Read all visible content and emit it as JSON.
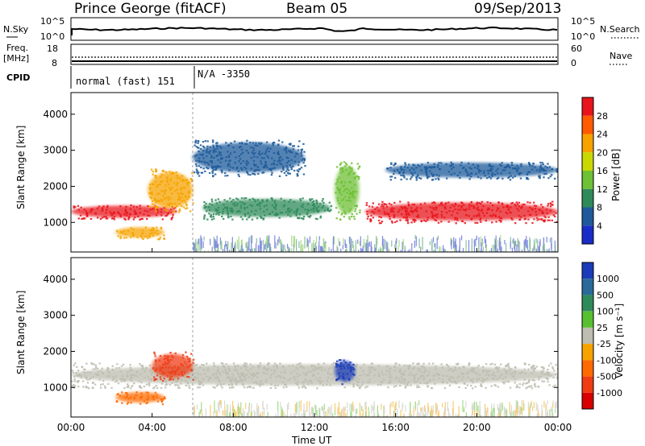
{
  "header": {
    "station": "Prince George (fitACF)",
    "beam": "Beam 05",
    "date": "09/Sep/2013"
  },
  "noise_panel": {
    "left_label": "N.Sky",
    "right_label": "N.Search",
    "left_ticks": [
      "10^5",
      "10^0"
    ],
    "right_ticks": [
      "10^5",
      "10^0"
    ]
  },
  "freq_panel": {
    "left_label_line1": "Freq.",
    "left_label_line2": "[MHz]",
    "right_label": "Nave",
    "left_ticks": [
      "18",
      "8"
    ],
    "right_ticks": [
      "60",
      "0"
    ]
  },
  "cpid": {
    "label": "CPID",
    "segment1": "normal (fast) 151",
    "segment2": "N/A -3350"
  },
  "power_panel": {
    "ylabel": "Slant Range [km]",
    "colorbar_label": "Power [dB]",
    "colorbar_ticks": [
      "28",
      "24",
      "20",
      "16",
      "12",
      "8",
      "4"
    ],
    "colorbar_colors": [
      "#e8141c",
      "#ff5a00",
      "#f6a300",
      "#c8d800",
      "#6ec035",
      "#2f8a5a",
      "#1e5a9a",
      "#1a2cc8"
    ]
  },
  "velocity_panel": {
    "ylabel": "Slant Range [km]",
    "colorbar_label": "Velocity [m s⁻¹]",
    "colorbar_ticks": [
      "1000",
      "500",
      "100",
      "25",
      "-25",
      "-100",
      "-500",
      "-1000"
    ],
    "colorbar_colors": [
      "#1a3cb8",
      "#2a6a9a",
      "#2f8a5a",
      "#58c030",
      "#bdbdb0",
      "#f6a300",
      "#ff6a00",
      "#f03c14",
      "#d80000"
    ]
  },
  "x_axis": {
    "label": "Time UT",
    "ticks": [
      "00:00",
      "04:00",
      "08:00",
      "12:00",
      "16:00",
      "20:00",
      "00:00"
    ]
  },
  "y_axis_ticks": [
    "4000",
    "3000",
    "2000",
    "1000"
  ],
  "chart_data": [
    {
      "type": "heatmap",
      "title": "Power",
      "xlabel": "Time UT",
      "ylabel": "Slant Range [km]",
      "xlim_hours": [
        0,
        24
      ],
      "ylim_km": [
        180,
        4600
      ],
      "colorbar": {
        "label": "Power [dB]",
        "ticks": [
          28,
          24,
          20,
          16,
          12,
          8,
          4
        ]
      },
      "features": [
        {
          "desc": "strong band",
          "t_start": 0.0,
          "t_end": 5.2,
          "range_km": [
            1100,
            1500
          ],
          "power_db": 26
        },
        {
          "desc": "rising band",
          "t_start": 3.8,
          "t_end": 6.0,
          "range_km": [
            1300,
            2500
          ],
          "power_db": 18
        },
        {
          "desc": "patch",
          "t_start": 2.2,
          "t_end": 4.6,
          "range_km": [
            550,
            900
          ],
          "power_db": 20
        },
        {
          "desc": "upper arc",
          "t_start": 6.0,
          "t_end": 11.5,
          "range_km": [
            2300,
            3300
          ],
          "power_db": 8
        },
        {
          "desc": "mid band",
          "t_start": 6.5,
          "t_end": 12.8,
          "range_km": [
            1100,
            1700
          ],
          "power_db": 10
        },
        {
          "desc": "spike",
          "t_start": 13.0,
          "t_end": 14.2,
          "range_km": [
            1100,
            2700
          ],
          "power_db": 12
        },
        {
          "desc": "strong band",
          "t_start": 14.5,
          "t_end": 24.0,
          "range_km": [
            1000,
            1600
          ],
          "power_db": 26
        },
        {
          "desc": "upper band",
          "t_start": 15.5,
          "t_end": 24.0,
          "range_km": [
            2200,
            2700
          ],
          "power_db": 6
        }
      ]
    },
    {
      "type": "heatmap",
      "title": "Velocity",
      "xlabel": "Time UT",
      "ylabel": "Slant Range [km]",
      "xlim_hours": [
        0,
        24
      ],
      "ylim_km": [
        180,
        4600
      ],
      "colorbar": {
        "label": "Velocity [m s-1]",
        "ticks": [
          1000,
          500,
          100,
          25,
          -25,
          -100,
          -500,
          -1000
        ]
      },
      "features": [
        {
          "desc": "ground scatter band",
          "t_start": 0.0,
          "t_end": 24.0,
          "range_km": [
            1000,
            1700
          ],
          "velocity": 0
        },
        {
          "desc": "red patch",
          "t_start": 4.0,
          "t_end": 6.0,
          "range_km": [
            1200,
            2000
          ],
          "velocity": -800
        },
        {
          "desc": "orange patch",
          "t_start": 2.2,
          "t_end": 4.6,
          "range_km": [
            550,
            900
          ],
          "velocity": -200
        },
        {
          "desc": "blue patch",
          "t_start": 13.0,
          "t_end": 14.0,
          "range_km": [
            1100,
            1800
          ],
          "velocity": 800
        }
      ]
    }
  ]
}
